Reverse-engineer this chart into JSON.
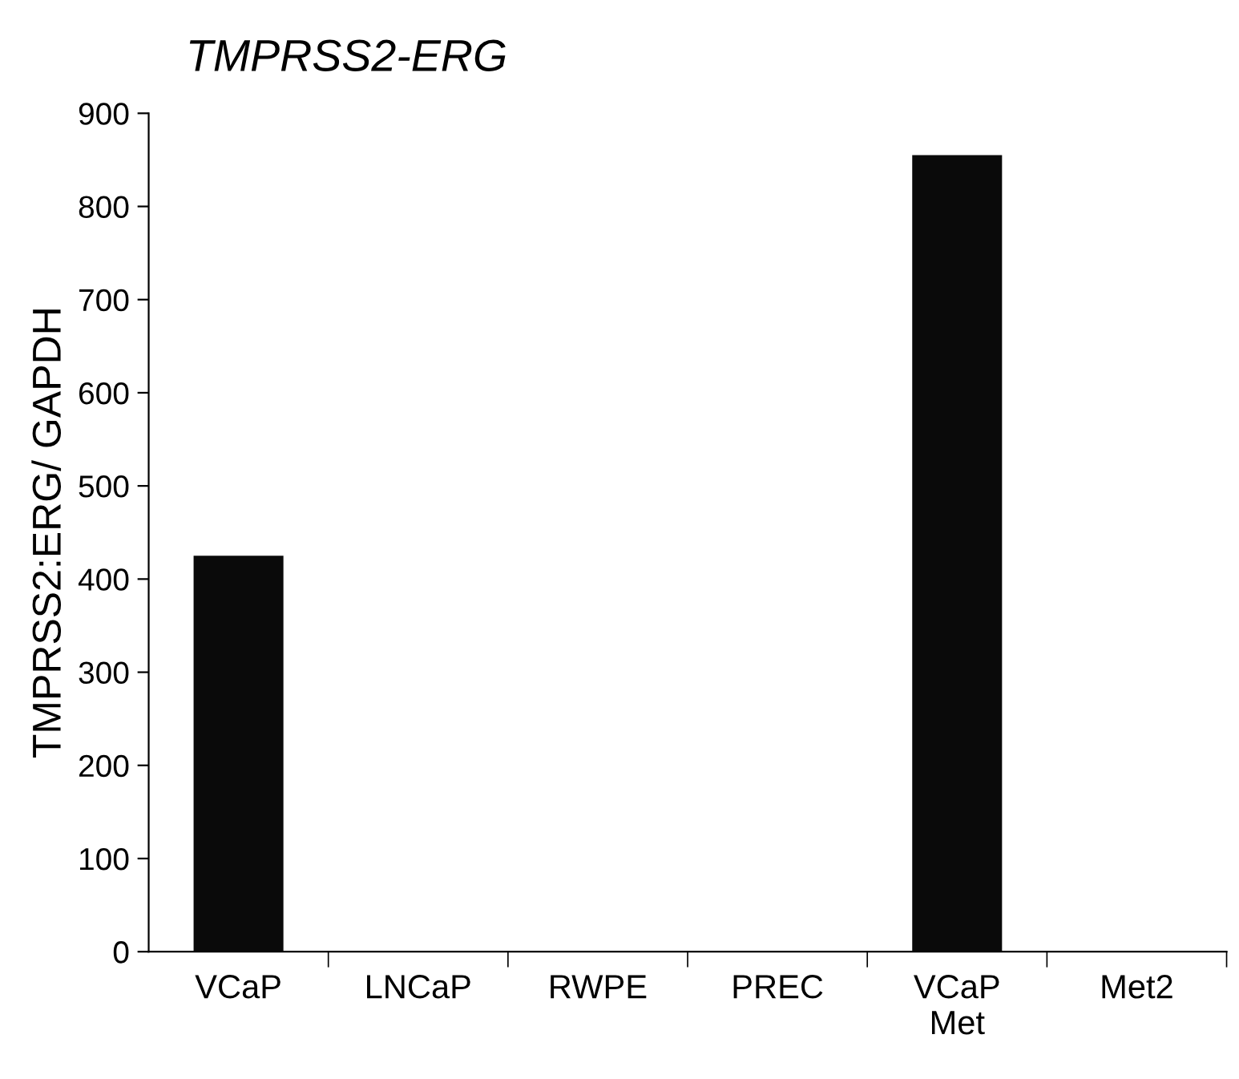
{
  "chart_data": {
    "type": "bar",
    "title": "TMPRSS2-ERG",
    "ylabel": "TMPRSS2:ERG/ GAPDH",
    "categories": [
      "VCaP",
      "LNCaP",
      "RWPE",
      "PREC",
      "VCaP\nMet",
      "Met2"
    ],
    "values": [
      425,
      0,
      0,
      0,
      855,
      0
    ],
    "color": "#0a0a0a",
    "ylim": [
      0,
      900
    ],
    "yticks": [
      0,
      100,
      200,
      300,
      400,
      500,
      600,
      700,
      800,
      900
    ],
    "grid": false,
    "legend": false
  }
}
